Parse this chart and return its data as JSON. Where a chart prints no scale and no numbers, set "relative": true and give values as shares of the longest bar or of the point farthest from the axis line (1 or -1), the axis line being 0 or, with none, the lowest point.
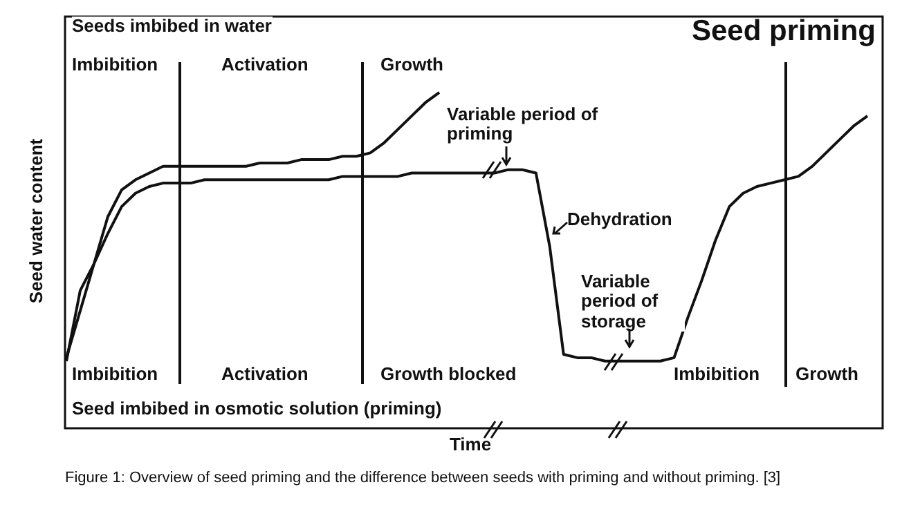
{
  "chart_data": {
    "type": "line",
    "title": "Seed priming",
    "ylabel": "Seed water content",
    "xlabel": "Time",
    "relative": true,
    "marker": "none",
    "line_style": "solid",
    "categories": [
      null,
      null,
      null,
      null,
      null,
      null,
      null,
      null,
      null,
      null,
      null,
      null,
      null,
      null,
      null,
      null,
      null,
      null,
      null,
      null,
      null,
      null,
      null,
      null,
      null,
      null,
      null,
      null,
      null,
      null,
      null,
      null,
      null,
      null,
      null,
      null,
      null,
      null,
      null,
      null,
      null,
      null,
      null,
      null,
      null,
      null,
      null,
      null,
      null,
      null,
      null,
      null,
      null,
      null,
      null,
      null,
      null,
      null,
      null
    ],
    "series": [
      {
        "color": "#111111",
        "values": [
          0.21,
          0.35,
          0.49,
          0.63,
          0.71,
          0.74,
          0.76,
          0.78,
          0.78,
          0.78,
          0.78,
          0.78,
          0.78,
          0.78,
          0.79,
          0.79,
          0.79,
          0.8,
          0.8,
          0.8,
          0.81,
          0.81,
          0.82,
          0.85,
          0.89,
          0.93,
          0.97,
          1,
          null,
          null,
          null,
          null,
          null,
          null,
          null,
          null,
          null,
          null,
          null,
          null,
          null,
          null,
          null,
          null,
          null,
          null,
          null,
          null,
          null,
          null,
          null,
          null,
          null,
          null,
          null,
          null,
          null,
          null,
          null
        ]
      },
      {
        "color": "#111111",
        "values": [
          0.2,
          0.41,
          0.49,
          0.58,
          0.66,
          0.7,
          0.72,
          0.73,
          0.73,
          0.73,
          0.74,
          0.74,
          0.74,
          0.74,
          0.74,
          0.74,
          0.74,
          0.74,
          0.74,
          0.74,
          0.75,
          0.75,
          0.75,
          0.75,
          0.75,
          0.76,
          0.76,
          0.76,
          0.76,
          0.76,
          0.76,
          0.76,
          0.77,
          0.77,
          0.76,
          0.54,
          0.22,
          0.21,
          0.21,
          0.2,
          0.2,
          0.2,
          0.2,
          0.2,
          0.21,
          0.33,
          0.44,
          0.56,
          0.66,
          0.7,
          0.72,
          0.73,
          0.74,
          0.75,
          0.78,
          0.82,
          0.86,
          0.9,
          0.93
        ]
      }
    ],
    "annotations": [
      "Seeds imbibed in water",
      "Imbibition",
      "Activation",
      "Growth",
      "Variable period of priming",
      "Dehydration",
      "Variable period of storage",
      "Imbibition",
      "Activation",
      "Growth blocked",
      "Imbibition",
      "Growth",
      "Seed imbibed in osmotic solution (priming)",
      "Figure 1: Overview of seed priming and the difference between seeds with priming and without priming. [3]"
    ]
  }
}
